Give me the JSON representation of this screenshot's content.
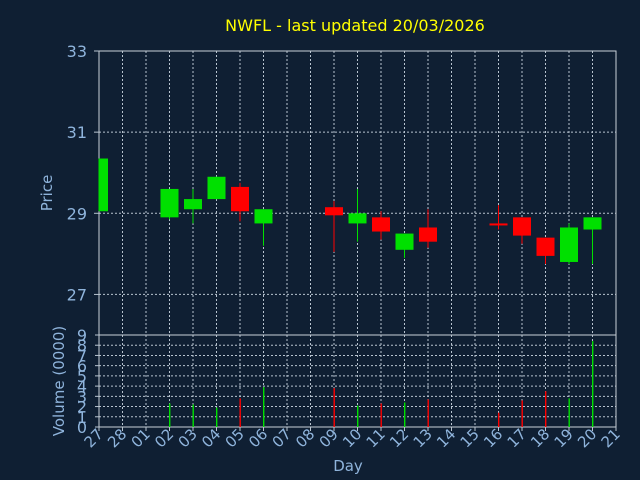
{
  "chart_data": {
    "type": "candlestick",
    "title": "NWFL - last updated 20/03/2026",
    "xlabel": "Day",
    "price_panel": {
      "ylabel": "Price",
      "ylim": [
        26,
        33
      ],
      "yticks": [
        "27",
        "29",
        "31",
        "33"
      ],
      "grid": true
    },
    "volume_panel": {
      "ylabel": "Volume (0000)",
      "ylim": [
        0,
        9
      ],
      "yticks": [
        "0",
        "1",
        "2",
        "3",
        "4",
        "5",
        "6",
        "7",
        "8",
        "9"
      ],
      "grid": true
    },
    "x_labels": [
      "27",
      "28",
      "01",
      "02",
      "03",
      "04",
      "05",
      "06",
      "07",
      "08",
      "09",
      "10",
      "11",
      "12",
      "13",
      "14",
      "15",
      "16",
      "17",
      "18",
      "19",
      "20",
      "21"
    ],
    "candles": [
      {
        "day": "27",
        "open": 29.05,
        "high": 30.35,
        "low": 29.05,
        "close": 30.35
      },
      {
        "day": "02",
        "open": 28.9,
        "high": 29.6,
        "low": 28.85,
        "close": 29.6
      },
      {
        "day": "03",
        "open": 29.1,
        "high": 29.6,
        "low": 28.75,
        "close": 29.35
      },
      {
        "day": "04",
        "open": 29.35,
        "high": 29.9,
        "low": 29.35,
        "close": 29.9
      },
      {
        "day": "05",
        "open": 29.65,
        "high": 29.75,
        "low": 28.8,
        "close": 29.05
      },
      {
        "day": "06",
        "open": 28.75,
        "high": 29.1,
        "low": 28.2,
        "close": 29.1
      },
      {
        "day": "09",
        "open": 29.15,
        "high": 29.3,
        "low": 28.05,
        "close": 28.95
      },
      {
        "day": "10",
        "open": 28.75,
        "high": 29.6,
        "low": 28.3,
        "close": 29.0
      },
      {
        "day": "11",
        "open": 28.9,
        "high": 29.05,
        "low": 28.35,
        "close": 28.55
      },
      {
        "day": "12",
        "open": 28.1,
        "high": 28.5,
        "low": 27.9,
        "close": 28.5
      },
      {
        "day": "13",
        "open": 28.65,
        "high": 29.1,
        "low": 28.15,
        "close": 28.3
      },
      {
        "day": "16",
        "open": 28.75,
        "high": 29.2,
        "low": 28.6,
        "close": 28.7
      },
      {
        "day": "17",
        "open": 28.9,
        "high": 28.9,
        "low": 28.25,
        "close": 28.45
      },
      {
        "day": "18",
        "open": 28.4,
        "high": 28.4,
        "low": 27.75,
        "close": 27.95
      },
      {
        "day": "19",
        "open": 27.8,
        "high": 28.75,
        "low": 27.75,
        "close": 28.65
      },
      {
        "day": "20",
        "open": 28.6,
        "high": 28.9,
        "low": 27.75,
        "close": 28.9
      }
    ],
    "volume": [
      {
        "day": "02",
        "value": 2.3
      },
      {
        "day": "03",
        "value": 2.2
      },
      {
        "day": "04",
        "value": 1.9
      },
      {
        "day": "05",
        "value": 2.8
      },
      {
        "day": "06",
        "value": 3.9
      },
      {
        "day": "09",
        "value": 3.8
      },
      {
        "day": "10",
        "value": 2.1
      },
      {
        "day": "11",
        "value": 2.3
      },
      {
        "day": "12",
        "value": 2.4
      },
      {
        "day": "13",
        "value": 2.7
      },
      {
        "day": "16",
        "value": 1.4
      },
      {
        "day": "17",
        "value": 2.6
      },
      {
        "day": "18",
        "value": 3.5
      },
      {
        "day": "19",
        "value": 2.8
      },
      {
        "day": "20",
        "value": 8.4
      }
    ],
    "colors": {
      "up": "#00e000",
      "down": "#ff0000",
      "title": "#ffff00",
      "axis_text": "#8fb4dc",
      "grid": "#b8c4d0",
      "background": "#0f1f33"
    }
  }
}
